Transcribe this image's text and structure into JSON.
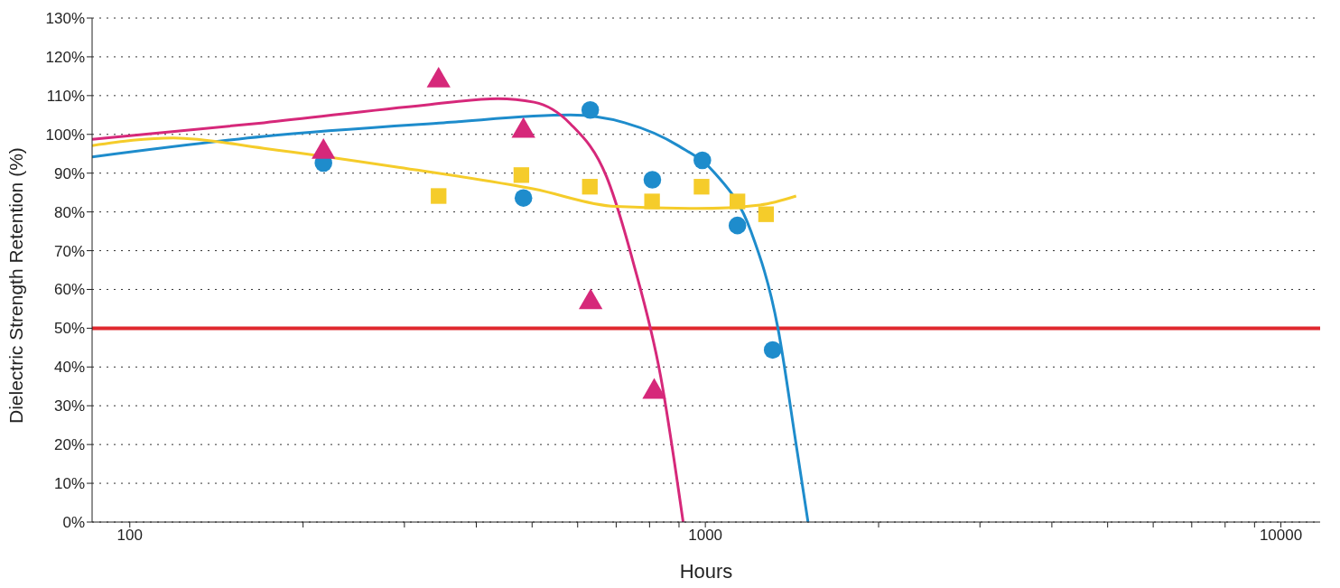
{
  "chart_data": {
    "type": "scatter",
    "xlabel": "Hours",
    "ylabel": "Dielectric Strength Retention (%)",
    "log": "x",
    "grid": "y",
    "xlim": [
      86,
      11700
    ],
    "ylim": [
      0,
      130
    ],
    "xticks": [
      100,
      {
        "value": 200,
        "label": null
      },
      {
        "value": 300,
        "label": null
      },
      {
        "value": 400,
        "label": null
      },
      {
        "value": 500,
        "label": null
      },
      {
        "value": 600,
        "label": null
      },
      {
        "value": 700,
        "label": null
      },
      {
        "value": 800,
        "label": null
      },
      {
        "value": 900,
        "label": null
      },
      1000,
      {
        "value": 2000,
        "label": null
      },
      {
        "value": 3000,
        "label": null
      },
      {
        "value": 4000,
        "label": null
      },
      {
        "value": 5000,
        "label": null
      },
      {
        "value": 6000,
        "label": null
      },
      {
        "value": 7000,
        "label": null
      },
      {
        "value": 8000,
        "label": null
      },
      {
        "value": 9000,
        "label": null
      },
      10000
    ],
    "yticks": [
      {
        "value": 0,
        "label": "0%"
      },
      {
        "value": 10,
        "label": "10%"
      },
      {
        "value": 20,
        "label": "20%"
      },
      {
        "value": 30,
        "label": "30%"
      },
      {
        "value": 40,
        "label": "40%"
      },
      {
        "value": 50,
        "label": "50%"
      },
      {
        "value": 60,
        "label": "60%"
      },
      {
        "value": 70,
        "label": "70%"
      },
      {
        "value": 80,
        "label": "80%"
      },
      {
        "value": 90,
        "label": "90%"
      },
      {
        "value": 100,
        "label": "100%"
      },
      {
        "value": 110,
        "label": "110%"
      },
      {
        "value": 120,
        "label": "120%"
      },
      {
        "value": 130,
        "label": "130%"
      }
    ],
    "ref_lines": [
      {
        "axis": "y",
        "value": 50,
        "color": "#e0282e"
      }
    ],
    "series": [
      {
        "type": "line",
        "marker": "none",
        "color": "#1e8ccc",
        "x": [
          86,
          171,
          351,
          583,
          724,
          899,
          1039,
          1200,
          1337,
          1438,
          1508
        ],
        "values": [
          94.2,
          99.5,
          103,
          105,
          103,
          97,
          90,
          75,
          50,
          20,
          0
        ]
      },
      {
        "type": "line",
        "marker": "none",
        "color": "#d6287a",
        "x": [
          86,
          171,
          327,
          436,
          504,
          583,
          673,
          750,
          836,
          915
        ],
        "values": [
          98.7,
          103,
          107.6,
          109.2,
          108.3,
          102.7,
          89.2,
          66.8,
          37.7,
          0
        ]
      },
      {
        "type": "line",
        "marker": "none",
        "color": "#f5cc2a",
        "x": [
          86,
          119,
          171,
          293,
          504,
          698,
          966,
          1245,
          1438
        ],
        "values": [
          97.1,
          99.1,
          96.4,
          91.5,
          85.9,
          81.4,
          80.9,
          81.8,
          84.1
        ]
      },
      {
        "marker": "square",
        "color": "#f5cc2a",
        "x": [
          344,
          479,
          630,
          808,
          985,
          1137,
          1275
        ],
        "values": [
          84.1,
          89.5,
          86.5,
          82.7,
          86.5,
          82.7,
          79.4
        ]
      },
      {
        "marker": "circle",
        "color": "#1e8ccc",
        "x": [
          217,
          483,
          631,
          809,
          988,
          1137,
          1309
        ],
        "values": [
          92.6,
          83.6,
          106.3,
          88.3,
          93.3,
          76.5,
          44.4
        ]
      },
      {
        "marker": "triangle",
        "color": "#d6287a",
        "x": [
          217,
          344,
          483,
          632,
          815
        ],
        "values": [
          95.5,
          113.9,
          100.9,
          56.7,
          33.6
        ]
      }
    ]
  }
}
